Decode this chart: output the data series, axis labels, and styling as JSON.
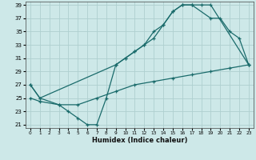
{
  "xlabel": "Humidex (Indice chaleur)",
  "xlim": [
    -0.5,
    23.5
  ],
  "ylim": [
    20.5,
    39.5
  ],
  "yticks": [
    21,
    23,
    25,
    27,
    29,
    31,
    33,
    35,
    37,
    39
  ],
  "xticks": [
    0,
    1,
    2,
    3,
    4,
    5,
    6,
    7,
    8,
    9,
    10,
    11,
    12,
    13,
    14,
    15,
    16,
    17,
    18,
    19,
    20,
    21,
    22,
    23
  ],
  "bg_color": "#cde8e8",
  "grid_color": "#aed0d0",
  "line_color": "#1a6b6b",
  "line1_x": [
    0,
    1,
    3,
    4,
    5,
    6,
    7,
    8,
    9,
    10,
    11,
    12,
    13,
    14,
    15,
    16,
    17,
    18,
    19,
    23
  ],
  "line1_y": [
    27,
    25,
    24,
    23,
    22,
    21,
    21,
    25,
    30,
    31,
    32,
    33,
    34,
    36,
    38,
    39,
    39,
    39,
    39,
    30
  ],
  "line2_x": [
    0,
    1,
    9,
    10,
    11,
    12,
    13,
    14,
    15,
    16,
    17,
    19,
    20,
    21,
    22,
    23
  ],
  "line2_y": [
    27,
    25,
    30,
    31,
    32,
    33,
    35,
    36,
    38,
    39,
    39,
    37,
    37,
    35,
    34,
    30
  ],
  "line3_x": [
    0,
    1,
    3,
    5,
    7,
    9,
    11,
    13,
    15,
    17,
    19,
    21,
    23
  ],
  "line3_y": [
    25,
    24.5,
    24,
    24,
    25,
    26,
    27,
    27.5,
    28,
    28.5,
    29,
    29.5,
    30
  ]
}
